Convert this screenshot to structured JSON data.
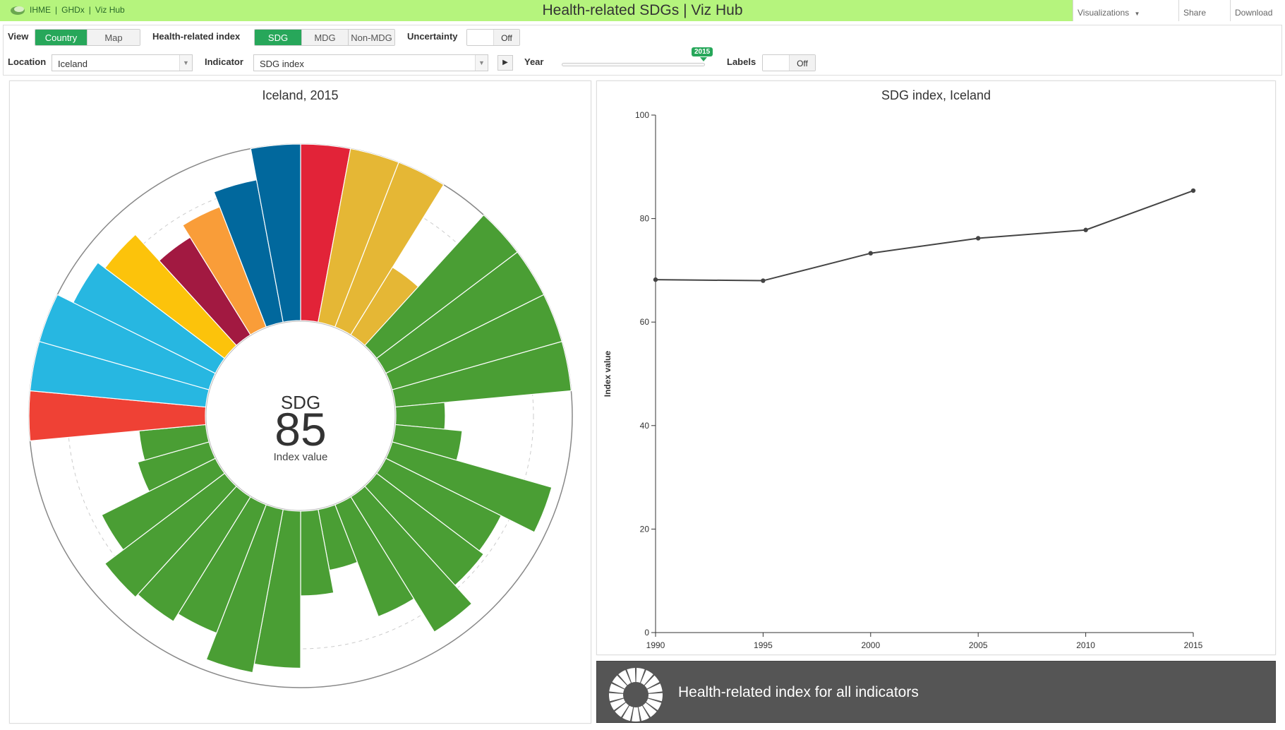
{
  "header": {
    "brand_links": [
      "IHME",
      "GHDx",
      "Viz Hub"
    ],
    "separator": "|",
    "title": "Health-related SDGs | Viz Hub",
    "nav": {
      "visualizations": "Visualizations",
      "visualizations_caret": "▼",
      "share": "Share",
      "download": "Download"
    }
  },
  "controls": {
    "view_label": "View",
    "view_options": [
      "Country",
      "Map"
    ],
    "view_selected": "Country",
    "index_label": "Health-related index",
    "index_options": [
      "SDG",
      "MDG",
      "Non-MDG"
    ],
    "index_selected": "SDG",
    "uncertainty_label": "Uncertainty",
    "uncertainty_state": "Off",
    "location_label": "Location",
    "location_value": "Iceland",
    "indicator_label": "Indicator",
    "indicator_value": "SDG index",
    "play_icon": "▶",
    "year_label": "Year",
    "year_value": "2015",
    "year_range": [
      1990,
      2015
    ],
    "labels_label": "Labels",
    "labels_state": "Off"
  },
  "left_panel": {
    "title": "Iceland, 2015",
    "center_label": "SDG",
    "center_value": "85",
    "center_caption": "Index value"
  },
  "right_panel": {
    "title": "SDG index, Iceland"
  },
  "banner": {
    "text": "Health-related index for all indicators",
    "icon": "sdg-wheel-icon"
  },
  "colors": {
    "topbar": "#b5f47d",
    "active_green": "#27a75a",
    "line": "#444444"
  },
  "polar_chart": {
    "type": "radial-bar",
    "note_values": "bar lengths as index value 0-100",
    "bars": [
      {
        "color": "#e22338",
        "value": 100
      },
      {
        "color": "#e5b735",
        "value": 100
      },
      {
        "color": "#e5b735",
        "value": 100
      },
      {
        "color": "#e5b735",
        "value": 45
      },
      {
        "color": "#4a9e34",
        "value": 100
      },
      {
        "color": "#4a9e34",
        "value": 100
      },
      {
        "color": "#4a9e34",
        "value": 100
      },
      {
        "color": "#4a9e34",
        "value": 100
      },
      {
        "color": "#4a9e34",
        "value": 28
      },
      {
        "color": "#4a9e34",
        "value": 38
      },
      {
        "color": "#4a9e34",
        "value": 94
      },
      {
        "color": "#4a9e34",
        "value": 73
      },
      {
        "color": "#4a9e34",
        "value": 76
      },
      {
        "color": "#4a9e34",
        "value": 90
      },
      {
        "color": "#4a9e34",
        "value": 68
      },
      {
        "color": "#4a9e34",
        "value": 35
      },
      {
        "color": "#4a9e34",
        "value": 48
      },
      {
        "color": "#4a9e34",
        "value": 89
      },
      {
        "color": "#4a9e34",
        "value": 94
      },
      {
        "color": "#4a9e34",
        "value": 78
      },
      {
        "color": "#4a9e34",
        "value": 83
      },
      {
        "color": "#4a9e34",
        "value": 85
      },
      {
        "color": "#4a9e34",
        "value": 72
      },
      {
        "color": "#4a9e34",
        "value": 42
      },
      {
        "color": "#4a9e34",
        "value": 38
      },
      {
        "color": "#ef4135",
        "value": 100
      },
      {
        "color": "#27b7e1",
        "value": 100
      },
      {
        "color": "#27b7e1",
        "value": 100
      },
      {
        "color": "#27b7e1",
        "value": 90
      },
      {
        "color": "#fcc30b",
        "value": 85
      },
      {
        "color": "#a21941",
        "value": 65
      },
      {
        "color": "#f99d39",
        "value": 73
      },
      {
        "color": "#01689d",
        "value": 82
      },
      {
        "color": "#01689d",
        "value": 100
      }
    ]
  },
  "chart_data": {
    "type": "line",
    "title": "SDG index, Iceland",
    "xlabel": "",
    "ylabel": "Index value",
    "x": [
      1990,
      1995,
      2000,
      2005,
      2010,
      2015
    ],
    "series": [
      {
        "values": [
          68.2,
          68.0,
          73.3,
          76.2,
          77.8,
          85.4
        ]
      }
    ],
    "ylim": [
      0,
      100
    ],
    "yticks": [
      0,
      20,
      40,
      60,
      80,
      100
    ],
    "xticks": [
      1990,
      1995,
      2000,
      2005,
      2010,
      2015
    ]
  }
}
